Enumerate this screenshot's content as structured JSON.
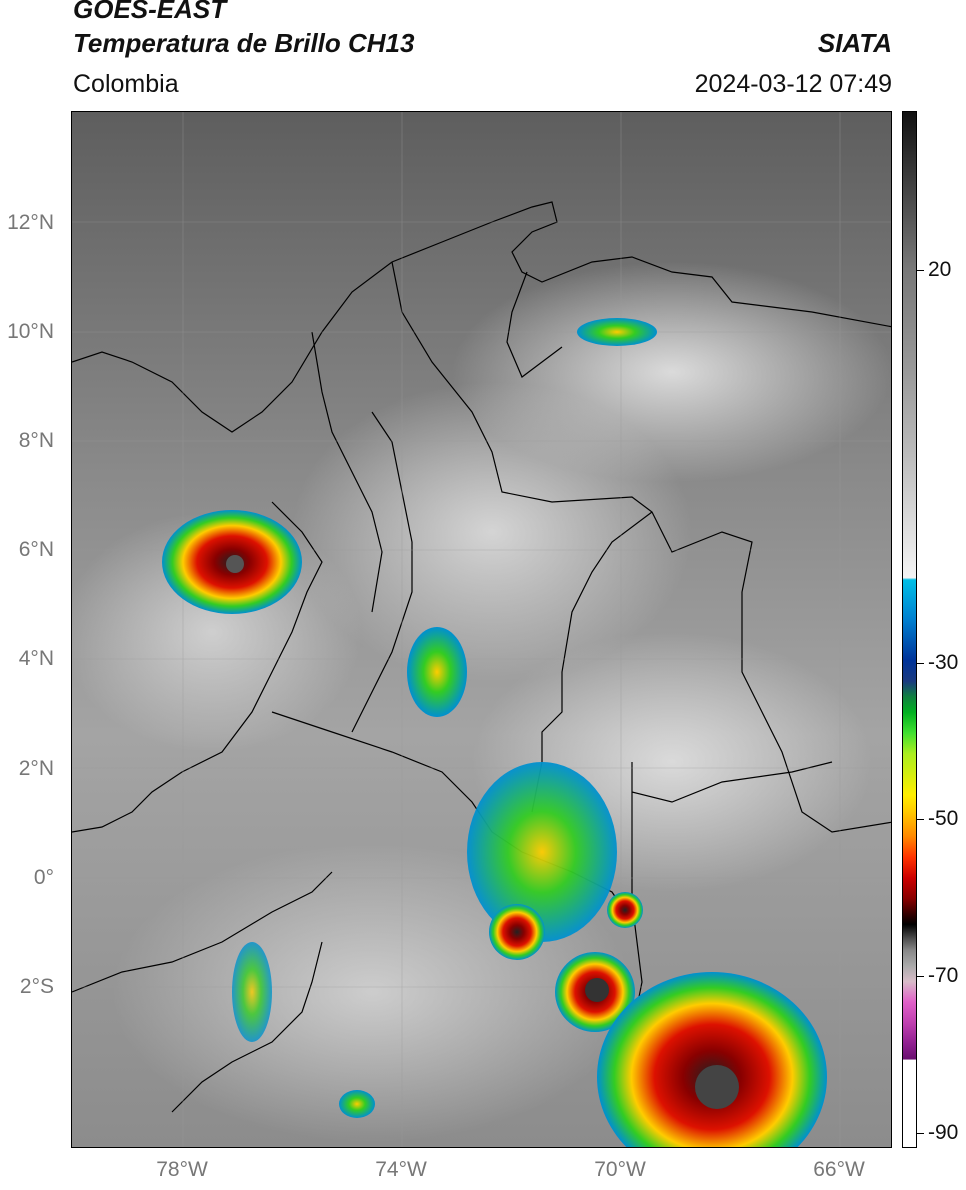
{
  "header": {
    "title": "GOES-EAST",
    "subtitle": "Temperatura de Brillo CH13",
    "region": "Colombia",
    "brand": "SIATA",
    "datetime": "2024-03-12 07:49"
  },
  "map": {
    "lat_labels": [
      "12°N",
      "10°N",
      "8°N",
      "6°N",
      "4°N",
      "2°N",
      "0°",
      "2°S"
    ],
    "lon_labels": [
      "78°W",
      "74°W",
      "70°W",
      "66°W"
    ]
  },
  "colorbar": {
    "tick_labels": [
      "20",
      "-30",
      "-50",
      "-70",
      "-90"
    ],
    "colors": {
      "warm": "#f4f4f4",
      "cyan": "#00bfe6",
      "blue": "#003399",
      "green": "#00b020",
      "yellow": "#ffee00",
      "orange": "#ff8800",
      "red": "#cc0000",
      "black": "#000000",
      "magenta": "#e060c8",
      "purple": "#6a1070"
    }
  }
}
